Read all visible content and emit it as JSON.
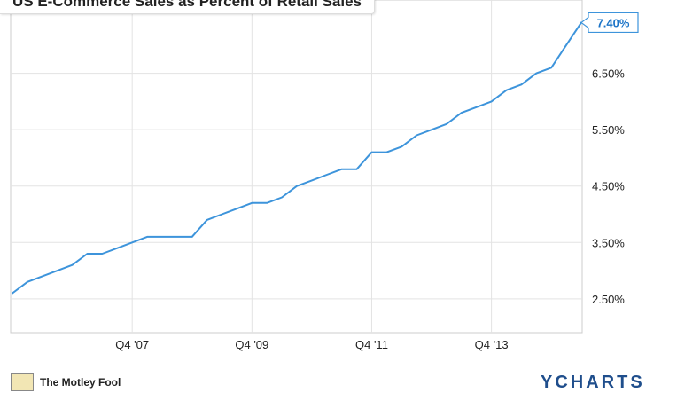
{
  "chart_data": {
    "type": "line",
    "title": "US E-Commerce Sales as Percent of Retail Sales",
    "x_tick_labels": [
      "Q4 '07",
      "Q4 '09",
      "Q4 '11",
      "Q4 '13"
    ],
    "y_tick_labels": [
      "2.50%",
      "3.50%",
      "4.50%",
      "5.50%",
      "6.50%"
    ],
    "ylim": [
      1.9,
      7.8
    ],
    "grid": true,
    "series": [
      {
        "color": "#3d94db",
        "last_value_label": "7.40%",
        "x": [
          "Q4 '05",
          "Q1 '06",
          "Q2 '06",
          "Q3 '06",
          "Q4 '06",
          "Q1 '07",
          "Q2 '07",
          "Q3 '07",
          "Q4 '07",
          "Q1 '08",
          "Q2 '08",
          "Q3 '08",
          "Q4 '08",
          "Q1 '09",
          "Q2 '09",
          "Q3 '09",
          "Q4 '09",
          "Q1 '10",
          "Q2 '10",
          "Q3 '10",
          "Q4 '10",
          "Q1 '11",
          "Q2 '11",
          "Q3 '11",
          "Q4 '11",
          "Q1 '12",
          "Q2 '12",
          "Q3 '12",
          "Q4 '12",
          "Q1 '13",
          "Q2 '13",
          "Q3 '13",
          "Q4 '13",
          "Q1 '14",
          "Q2 '14",
          "Q3 '14",
          "Q4 '14",
          "Q1 '15",
          "Q2 '15"
        ],
        "values": [
          2.6,
          2.8,
          2.9,
          3.0,
          3.1,
          3.3,
          3.3,
          3.4,
          3.5,
          3.6,
          3.6,
          3.6,
          3.6,
          3.9,
          4.0,
          4.1,
          4.2,
          4.2,
          4.3,
          4.5,
          4.6,
          4.7,
          4.8,
          4.8,
          5.1,
          5.1,
          5.2,
          5.4,
          5.5,
          5.6,
          5.8,
          5.9,
          6.0,
          6.2,
          6.3,
          6.5,
          6.6,
          7.0,
          7.4
        ]
      }
    ]
  },
  "footer": {
    "source_label": "The Motley Fool",
    "brand": "YCHARTS"
  }
}
